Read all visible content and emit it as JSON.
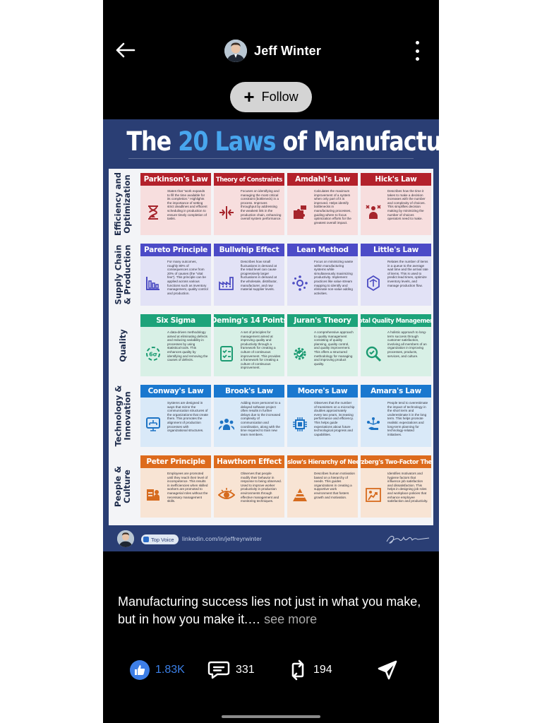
{
  "post": {
    "author_name": "Jeff Winter",
    "follow_label": "Follow",
    "caption": "Manufacturing success lies not just in what you make, but in how you make it.…",
    "see_more_label": " see more"
  },
  "infographic": {
    "title_pre": "The ",
    "title_highlight": "20 Laws",
    "title_post": " of Manufacturing",
    "rows": [
      {
        "label": "Efficiency and Optimization",
        "color": "red",
        "cards": [
          {
            "title": "Parkinson's Law",
            "icon": "hourglass-icon",
            "text": "States that \"work expands to fill the time available for its completion.\" Highlights the importance of setting strict deadlines and efficient scheduling in production to ensure timely completion of tasks."
          },
          {
            "title": "Theory of Constraints",
            "icon": "compress-arrows-icon",
            "text": "Focuses on identifying and managing the most critical constraint (bottleneck) in a process. Improves throughput by addressing the weakest link in the production chain, enhancing overall system performance."
          },
          {
            "title": "Amdahl's Law",
            "icon": "puzzle-icon",
            "text": "Calculates the maximum improvement of a system when only part of it is improved. Helps identify bottlenecks in manufacturing processes, guiding where to focus optimization efforts for the greatest overall impact."
          },
          {
            "title": "Hick's Law",
            "icon": "decision-icon",
            "text": "Describes how the time it takes to make a decision increases with the number and complexity of choices. This simplifies decision making by minimizing the number of choices operators need to make."
          }
        ]
      },
      {
        "label": "Supply Chain & Production",
        "color": "indigo",
        "cards": [
          {
            "title": "Pareto Principle",
            "icon": "bar-chart-icon",
            "text": "For many outcomes, roughly 80% of consequences come from 20% of causes (the \"vital few\"). This principle can be applied across various functions such as inventory management, quality control and production."
          },
          {
            "title": "Bullwhip Effect",
            "icon": "factory-icon",
            "text": "Describes how small fluctuations in demand at the retail level can cause progressively larger fluctuations in demand at the wholesale, distributor, manufacturer, and raw material supplier levels."
          },
          {
            "title": "Lean Method",
            "icon": "lean-cycle-icon",
            "text": "Focus on minimizing waste within manufacturing systems while simultaneously maximizing productivity. Implement practices like value stream mapping to identify and eliminate non-value adding activities."
          },
          {
            "title": "Little's Law",
            "icon": "queue-icon",
            "text": "Relates the number of items in a queue to the average wait time and the arrival rate of items. This is used to predict lead times, optimize inventory levels, and manage production flow."
          }
        ]
      },
      {
        "label": "Quality",
        "color": "green",
        "cards": [
          {
            "title": "Six Sigma",
            "icon": "six-sigma-icon",
            "text": "A data-driven methodology aimed at eliminating defects and reducing variability in processes by using statistical tools. This enhances quality by identifying and removing the causes of defects."
          },
          {
            "title": "Deming's 14 Points",
            "icon": "checklist-icon",
            "text": "A set of principles for management aimed at improving quality and productivity through a framework for creating a culture of continuous improvement. This provides a framework for creating a culture of continuous improvement."
          },
          {
            "title": "Juran's Theory",
            "icon": "gear-check-icon",
            "text": "A comprehensive approach to quality management consisting of quality planning, quality control, and quality improvement. This offers a structured methodology for managing and improving product quality."
          },
          {
            "title": "Total Quality Management",
            "icon": "magnifier-check-icon",
            "text": "A holistic approach to long-term success through customer satisfaction, involving all members of an organization in improving processes, products, services, and culture."
          }
        ]
      },
      {
        "label": "Technology & Innovation",
        "color": "blue",
        "cards": [
          {
            "title": "Conway's Law",
            "icon": "org-structure-icon",
            "text": "Systems are designed in ways that mirror the communication structures of the organizations that create them. This promotes the alignment of production processes with organizational structures."
          },
          {
            "title": "Brook's Law",
            "icon": "team-icon",
            "text": "Adding more personnel to a delayed software project often results in further delays due to the increased complexity of communication and coordination, along with the time required to train new team members."
          },
          {
            "title": "Moore's Law",
            "icon": "chip-icon",
            "text": "Observes that the number of transistors on a microchip doubles approximately every two years, increasing performance and efficiency. This helps guide expectations about future technological progress and capabilities."
          },
          {
            "title": "Amara's Law",
            "icon": "network-hand-icon",
            "text": "People tend to overestimate the impact of technology in the short term and underestimate it in the long term. This helps promote realistic expectations and long-term planning for technology-related initiatives."
          }
        ]
      },
      {
        "label": "People & Culture",
        "color": "orange",
        "cards": [
          {
            "title": "Peter Principle",
            "icon": "promotion-icon",
            "text": "Employees are promoted until they reach their level of incompetence. This results in inefficiencies when skilled workers are promoted to managerial roles without the necessary management skills."
          },
          {
            "title": "Hawthorn Effect",
            "icon": "eye-icon",
            "text": "Observes that people modify their behavior in response to being observed. Used to improve worker productivity in production environments through effective management and monitoring techniques."
          },
          {
            "title": "Maslow's Hierarchy of Needs",
            "icon": "pyramid-icon",
            "text": "Describes human motivation based on a hierarchy of needs. This guides organizations in creating a supportive work environment that fosters growth and motivation."
          },
          {
            "title": "Herzberg's Two-Factor Theory",
            "icon": "motivation-icon",
            "text": "Identifies motivators and hygiene factors that influence job satisfaction and dissatisfaction. This helps in designing job roles and workplace policies that enhance employee satisfaction and productivity."
          }
        ]
      }
    ],
    "footer": {
      "badge": "Top Voice",
      "url": "linkedin.com/in/jeffreyrwinter"
    }
  },
  "actions": {
    "likes": "1.83K",
    "comments": "331",
    "reposts": "194"
  },
  "colors": {
    "background": "#000000",
    "infographic_bg": "#2a3e74",
    "title_highlight": "#48a6ee",
    "like_blue": "#3b80e8",
    "follow_bg": "#d4d4d4"
  }
}
